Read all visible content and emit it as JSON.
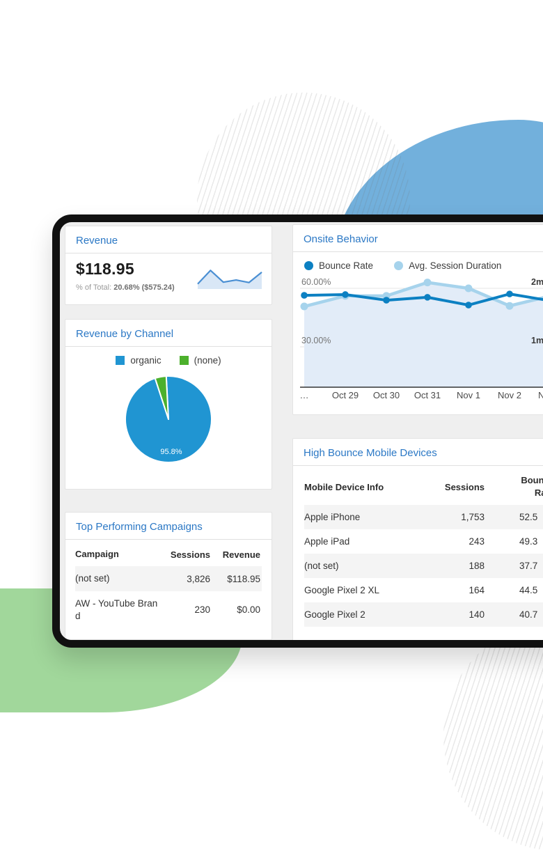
{
  "colors": {
    "accent_blue": "#2b78c5",
    "frame_border": "#111111",
    "frame_bg": "#efefef",
    "bounce_line": "#0c80c2",
    "avg_line": "#a6d3ec",
    "area_fill": "#e2ecf8",
    "pie_blue": "#2095d2",
    "pie_green": "#4cb02c",
    "spark_stroke": "#4a8fd3",
    "spark_fill": "#d9e7f6",
    "blob_blue": "#72b0dc",
    "blob_green": "#a1d79b",
    "row_alt_bg": "#f4f4f4"
  },
  "panels": {
    "revenue": {
      "title": "Revenue",
      "value": "$118.95",
      "total_label": "% of Total:",
      "total_value": "20.68% ($575.24)"
    },
    "revenue_by_channel": {
      "title": "Revenue by Channel"
    },
    "top_campaigns": {
      "title": "Top Performing Campaigns"
    },
    "onsite_behavior": {
      "title": "Onsite Behavior"
    },
    "high_bounce": {
      "title": "High Bounce Mobile Devices"
    }
  },
  "chart_data": [
    {
      "type": "line",
      "title": "Onsite Behavior",
      "categories": [
        "…",
        "Oct 29",
        "Oct 30",
        "Oct 31",
        "Nov 1",
        "Nov 2",
        "N"
      ],
      "series": [
        {
          "name": "Bounce Rate",
          "color": "#0c80c2",
          "axis": "left",
          "unit": "%",
          "values": [
            56.4,
            56.8,
            53.9,
            55.4,
            51.4,
            57.1,
            53.6
          ]
        },
        {
          "name": "Avg. Session Duration",
          "color": "#a6d3ec",
          "axis": "right",
          "unit": "min",
          "area": true,
          "values": [
            1.69,
            1.87,
            1.87,
            2.1,
            2.0,
            1.7,
            1.87
          ]
        }
      ],
      "y_left_ticks": [
        "60.00%",
        "30.00%"
      ],
      "y_right_ticks": [
        "2m",
        "1m"
      ],
      "y_left_range": [
        30,
        60
      ],
      "y_right_range": [
        1,
        2
      ],
      "legend_position": "top",
      "grid": true
    },
    {
      "type": "pie",
      "title": "Revenue by Channel",
      "labels": [
        "organic",
        "(none)"
      ],
      "values": [
        95.8,
        4.2
      ],
      "colors": [
        "#2095d2",
        "#4cb02c"
      ],
      "data_label": "95.8%",
      "legend_position": "top"
    },
    {
      "type": "line",
      "title": "Revenue sparkline",
      "values": [
        0.2,
        0.95,
        0.3,
        0.42,
        0.28,
        0.85
      ],
      "ylim": [
        0,
        1
      ]
    },
    {
      "type": "table",
      "title": "Top Performing Campaigns",
      "columns": [
        "Campaign",
        "Sessions",
        "Revenue"
      ],
      "rows": [
        [
          "(not set)",
          "3,826",
          "$118.95"
        ],
        [
          "AW - YouTube Brand",
          "230",
          "$0.00"
        ]
      ]
    },
    {
      "type": "table",
      "title": "High Bounce Mobile Devices",
      "columns": [
        "Mobile Device Info",
        "Sessions",
        "Bounce Rate"
      ],
      "rows": [
        [
          "Apple iPhone",
          "1,753",
          "52.5"
        ],
        [
          "Apple iPad",
          "243",
          "49.3"
        ],
        [
          "(not set)",
          "188",
          "37.7"
        ],
        [
          "Google Pixel 2 XL",
          "164",
          "44.5"
        ],
        [
          "Google Pixel 2",
          "140",
          "40.7"
        ]
      ]
    }
  ]
}
